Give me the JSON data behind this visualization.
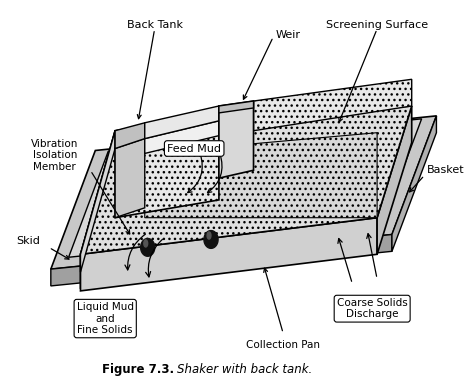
{
  "title": "Figure 7.3.",
  "title_suffix": "Shaker with back tank.",
  "bg_color": "#ffffff",
  "labels": {
    "back_tank": "Back Tank",
    "weir": "Weir",
    "screening_surface": "Screening Surface",
    "vibration_isolation": "Vibration\nIsolation\nMember",
    "basket": "Basket",
    "skid": "Skid",
    "feed_mud": "Feed Mud",
    "liquid_mud": "Liquid Mud\nand\nFine Solids",
    "coarse_solids": "Coarse Solids\nDischarge",
    "collection_pan": "Collection Pan"
  },
  "line_color": "#000000"
}
